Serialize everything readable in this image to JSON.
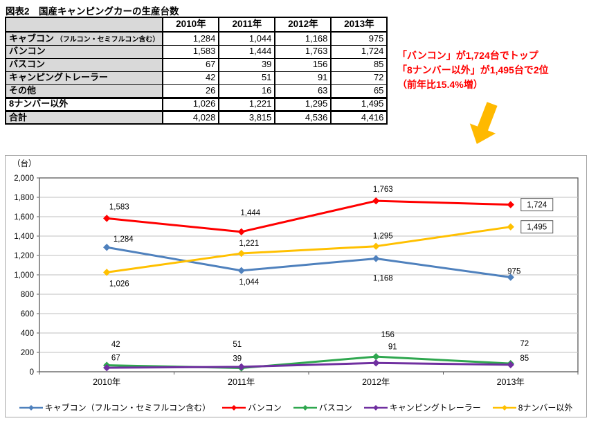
{
  "title": "図表2　国産キャンピングカーの生産台数",
  "table": {
    "corner_label": "",
    "columns": [
      "2010年",
      "2011年",
      "2012年",
      "2013年"
    ],
    "rows": [
      {
        "label": "キャブコン",
        "note": "（フルコン・セミフルコン含む）",
        "values": [
          "1,284",
          "1,044",
          "1,168",
          "975"
        ],
        "shaded": true,
        "thick_top": false
      },
      {
        "label": "バンコン",
        "note": "",
        "values": [
          "1,583",
          "1,444",
          "1,763",
          "1,724"
        ],
        "shaded": true,
        "thick_top": false
      },
      {
        "label": "バスコン",
        "note": "",
        "values": [
          "67",
          "39",
          "156",
          "85"
        ],
        "shaded": true,
        "thick_top": false
      },
      {
        "label": "キャンピングトレーラー",
        "note": "",
        "values": [
          "42",
          "51",
          "91",
          "72"
        ],
        "shaded": true,
        "thick_top": false
      },
      {
        "label": "その他",
        "note": "",
        "values": [
          "26",
          "16",
          "63",
          "65"
        ],
        "shaded": true,
        "thick_top": false
      },
      {
        "label": "8ナンバー以外",
        "note": "",
        "values": [
          "1,026",
          "1,221",
          "1,295",
          "1,495"
        ],
        "shaded": false,
        "thick_top": true
      },
      {
        "label": "合計",
        "note": "",
        "values": [
          "4,028",
          "3,815",
          "4,536",
          "4,416"
        ],
        "shaded": true,
        "thick_top": true
      }
    ]
  },
  "annotation": {
    "lines": [
      "「バンコン」が1,724台でトップ",
      "「8ナンバー以外」が1,495台で2位",
      "（前年比15.4%増）"
    ],
    "text_color": "#ff0000",
    "arrow_color": "#ffb900"
  },
  "chart_data": {
    "type": "line",
    "unit_label": "（台）",
    "categories": [
      "2010年",
      "2011年",
      "2012年",
      "2013年"
    ],
    "series": [
      {
        "name": "キャブコン（フルコン・セミフルコン含む）",
        "color": "#4f81bd",
        "values": [
          1284,
          1044,
          1168,
          975
        ]
      },
      {
        "name": "バンコン",
        "color": "#ff0000",
        "values": [
          1583,
          1444,
          1763,
          1724
        ]
      },
      {
        "name": "バスコン",
        "color": "#2fa74f",
        "values": [
          67,
          39,
          156,
          85
        ]
      },
      {
        "name": "キャンピングトレーラー",
        "color": "#7030a0",
        "values": [
          42,
          51,
          91,
          72
        ]
      },
      {
        "name": "8ナンバー以外",
        "color": "#ffc000",
        "values": [
          1026,
          1221,
          1295,
          1495
        ]
      }
    ],
    "ylim": [
      0,
      2000
    ],
    "ytick_step": 200,
    "grid": true,
    "legend_position": "bottom",
    "boxed_labels": [
      {
        "series": "バンコン",
        "category": "2013年",
        "value": 1724
      },
      {
        "series": "8ナンバー以外",
        "category": "2013年",
        "value": 1495
      }
    ]
  }
}
